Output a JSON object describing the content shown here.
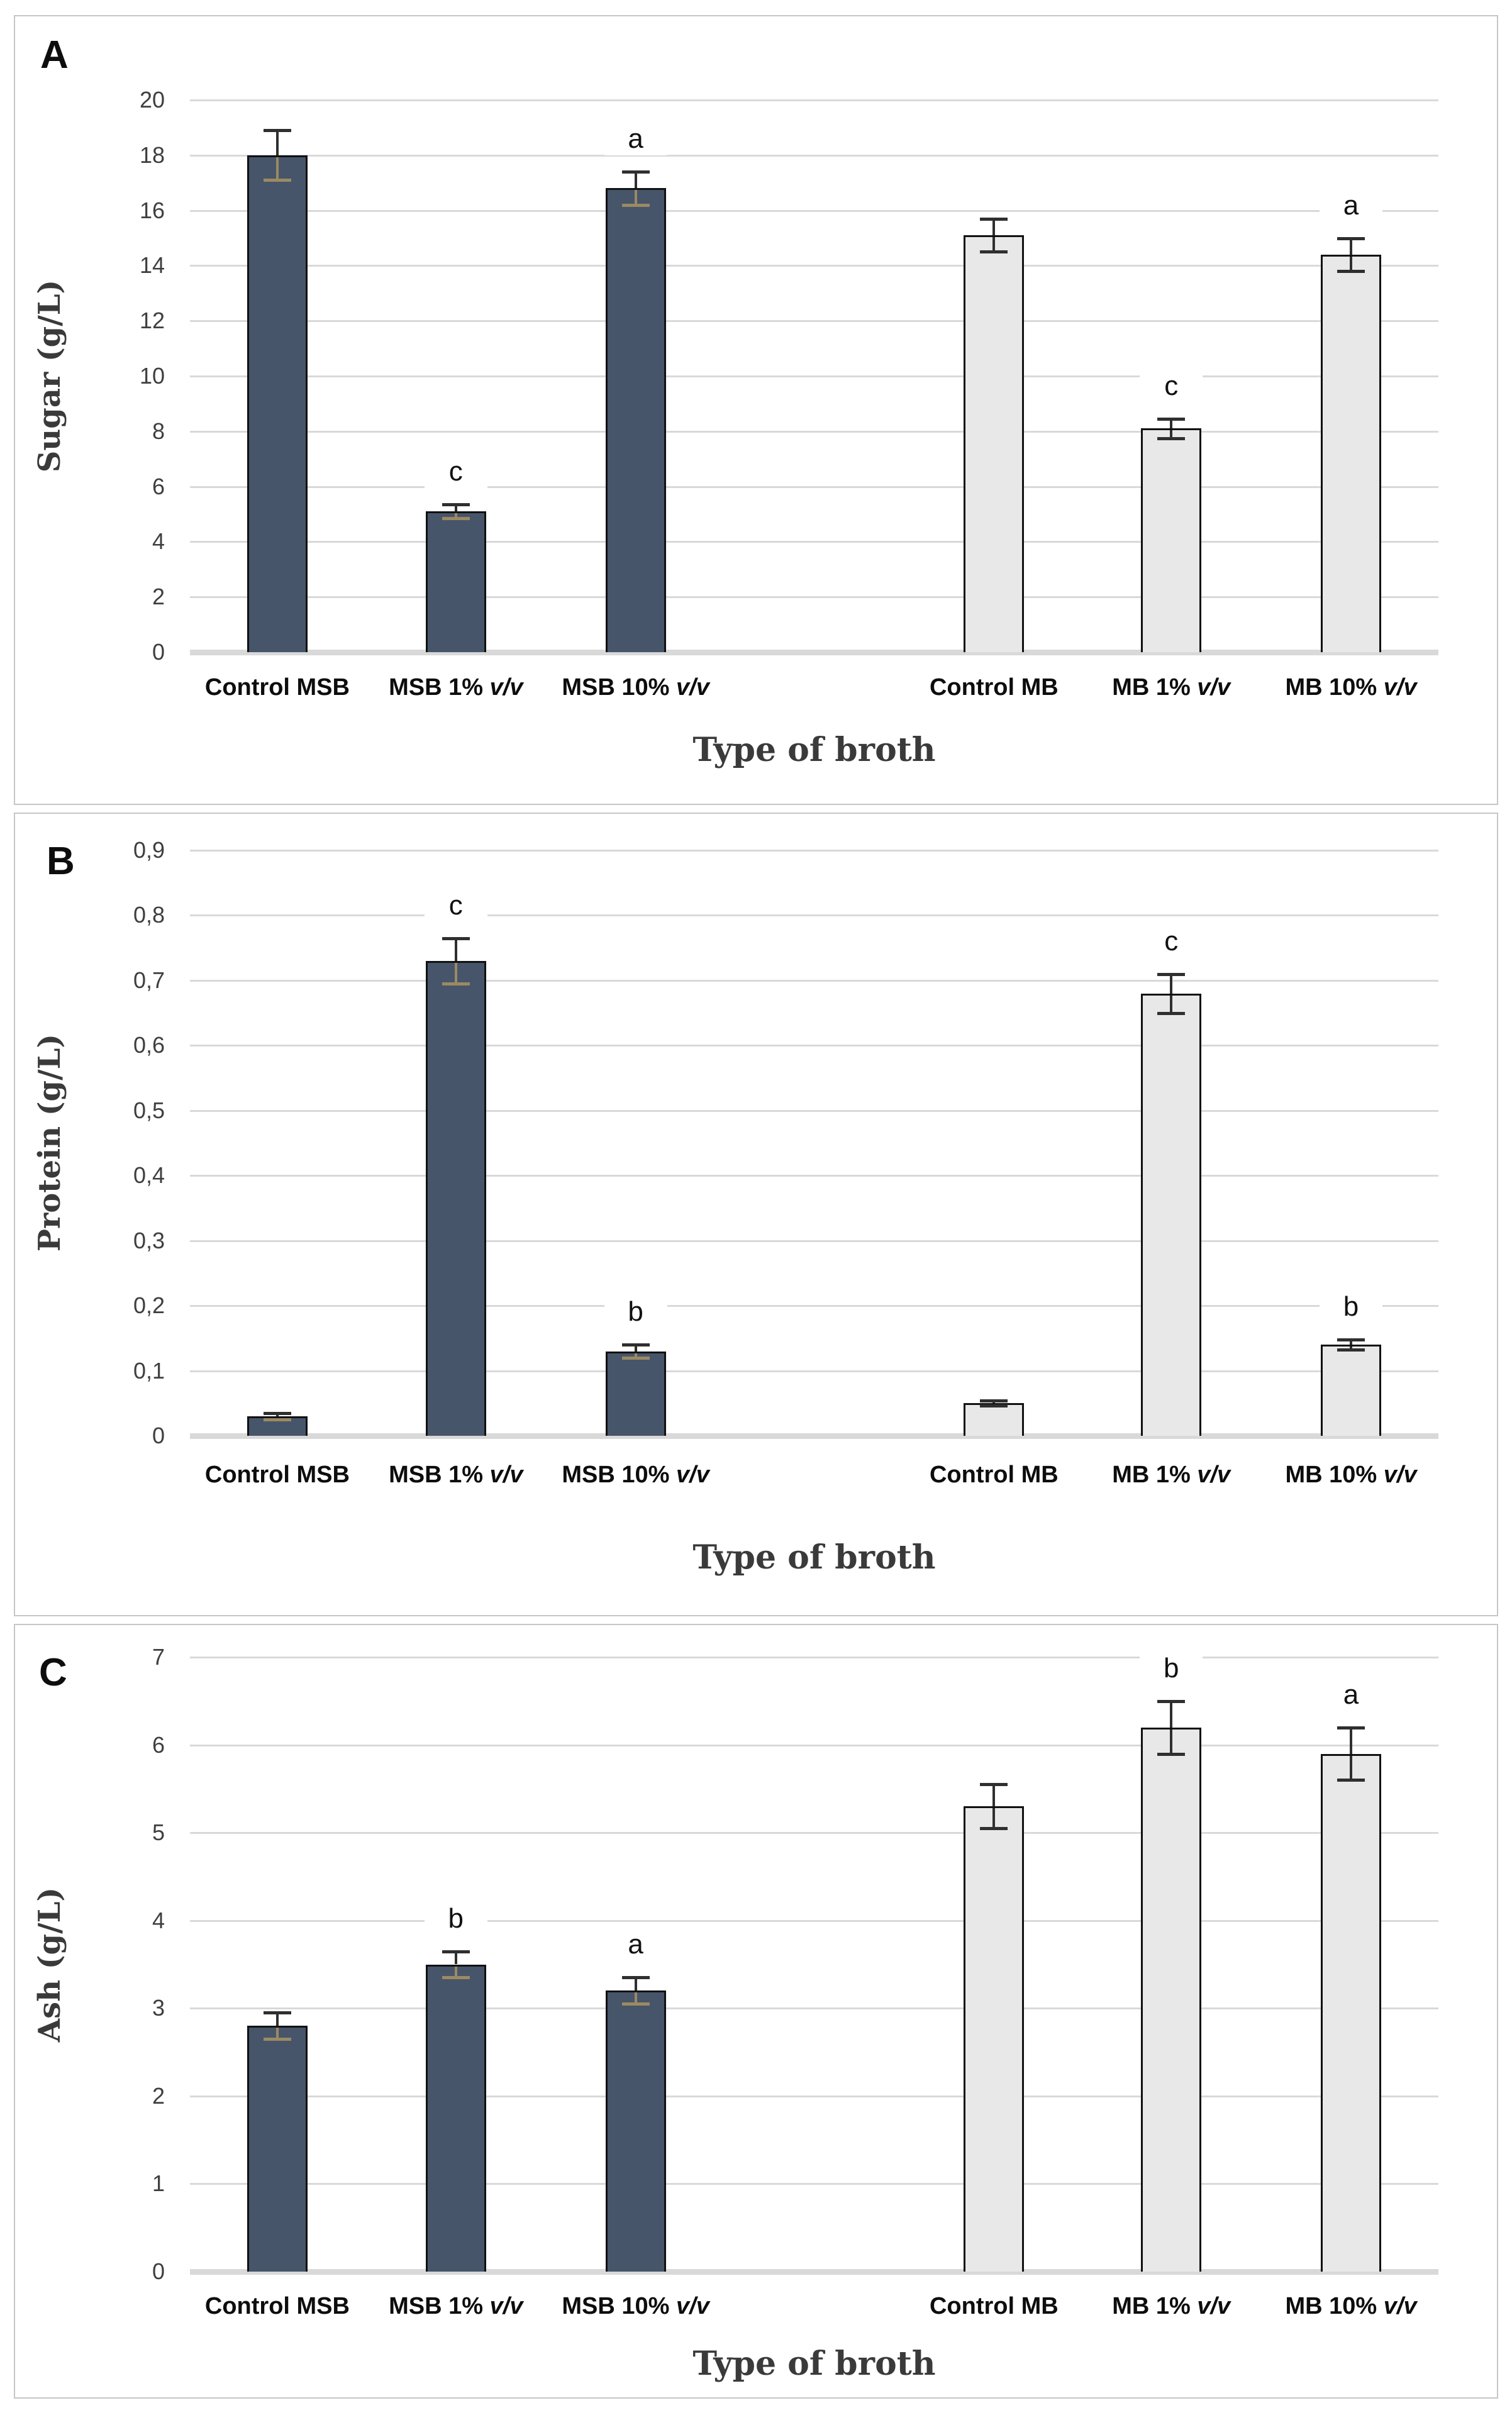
{
  "figure": {
    "description": "Three-panel bar chart figure comparing broth types",
    "x_axis_title": "Type of broth",
    "colors": {
      "dark_bar_fill": "#47556b",
      "light_bar_fill": "#e8e8e8",
      "bar_border": "#111111",
      "gridline": "#d9d9d9",
      "error_bar": "#2f2f2f",
      "error_bar_inner_on_dark": "#9b8a62",
      "text": "#0d0d0d",
      "axis_title_text": "#3a3a3a"
    }
  },
  "chart_data": [
    {
      "type": "bar",
      "panel_letter": "A",
      "title": "",
      "ylabel": "Sugar (g/L)",
      "xlabel": "Type of broth",
      "ylim": [
        0,
        20
      ],
      "ytick_step": 2,
      "ytick_labels": [
        "0",
        "2",
        "4",
        "6",
        "8",
        "10",
        "12",
        "14",
        "16",
        "18",
        "20"
      ],
      "grid": true,
      "legend": false,
      "categories": [
        "Control MSB",
        "MSB 1% v/v",
        "MSB 10% v/v",
        "Control MB",
        "MB 1% v/v",
        "MB 10% v/v"
      ],
      "values": [
        18.0,
        5.1,
        16.8,
        15.1,
        8.1,
        14.4
      ],
      "errors": [
        0.9,
        0.25,
        0.6,
        0.6,
        0.35,
        0.6
      ],
      "sig_letters": [
        "",
        "c",
        "a",
        "",
        "c",
        "a"
      ],
      "bar_styles": [
        "dark",
        "dark",
        "dark",
        "light",
        "light",
        "light"
      ]
    },
    {
      "type": "bar",
      "panel_letter": "B",
      "title": "",
      "ylabel": "Protein (g/L)",
      "xlabel": "Type of broth",
      "ylim": [
        0,
        0.9
      ],
      "ytick_step": 0.1,
      "ytick_labels": [
        "0",
        "0,1",
        "0,2",
        "0,3",
        "0,4",
        "0,5",
        "0,6",
        "0,7",
        "0,8",
        "0,9"
      ],
      "grid": true,
      "legend": false,
      "categories": [
        "Control MSB",
        "MSB 1% v/v",
        "MSB 10% v/v",
        "Control MB",
        "MB 1% v/v",
        "MB 10% v/v"
      ],
      "values": [
        0.03,
        0.73,
        0.13,
        0.05,
        0.68,
        0.14
      ],
      "errors": [
        0.005,
        0.035,
        0.01,
        0.004,
        0.03,
        0.008
      ],
      "sig_letters": [
        "",
        "c",
        "b",
        "",
        "c",
        "b"
      ],
      "bar_styles": [
        "dark",
        "dark",
        "dark",
        "light",
        "light",
        "light"
      ]
    },
    {
      "type": "bar",
      "panel_letter": "C",
      "title": "",
      "ylabel": "Ash (g/L)",
      "xlabel": "Type of broth",
      "ylim": [
        0,
        7
      ],
      "ytick_step": 1,
      "ytick_labels": [
        "0",
        "1",
        "2",
        "3",
        "4",
        "5",
        "6",
        "7"
      ],
      "grid": true,
      "legend": false,
      "categories": [
        "Control MSB",
        "MSB 1% v/v",
        "MSB 10% v/v",
        "Control MB",
        "MB 1% v/v",
        "MB 10% v/v"
      ],
      "values": [
        2.8,
        3.5,
        3.2,
        5.3,
        6.2,
        5.9
      ],
      "errors": [
        0.15,
        0.15,
        0.15,
        0.25,
        0.3,
        0.3
      ],
      "sig_letters": [
        "",
        "b",
        "a",
        "",
        "b",
        "a"
      ],
      "bar_styles": [
        "dark",
        "dark",
        "dark",
        "light",
        "light",
        "light"
      ]
    }
  ]
}
